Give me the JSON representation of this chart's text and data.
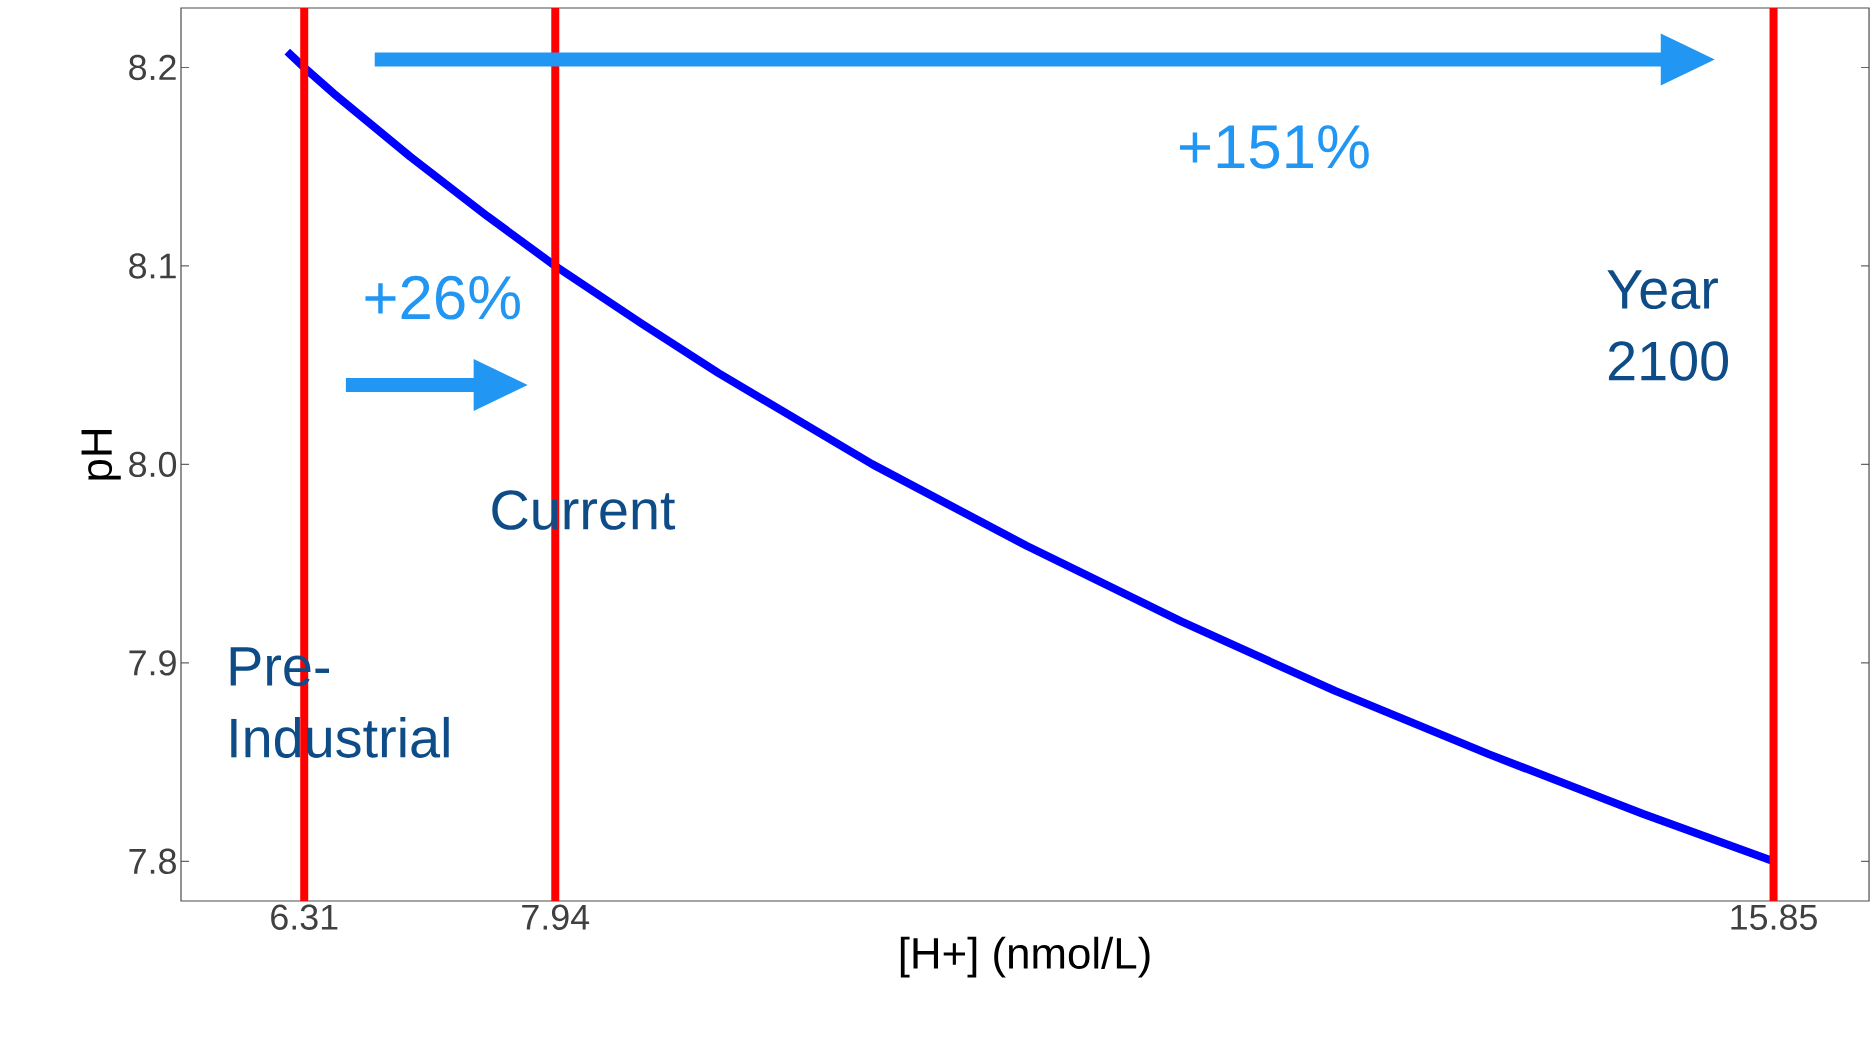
{
  "chart_data": {
    "type": "line",
    "xlabel": "[H+] (nmol/L)",
    "ylabel": "pH",
    "x": [
      6.2,
      6.31,
      6.5,
      7,
      7.5,
      7.94,
      8.5,
      9,
      10,
      11,
      12,
      13,
      14,
      15,
      15.85
    ],
    "series": [
      {
        "color": "#0000ff",
        "values": [
          8.208,
          8.2,
          8.187,
          8.155,
          8.125,
          8.1,
          8.071,
          8.046,
          8.0,
          7.959,
          7.921,
          7.886,
          7.854,
          7.824,
          7.8
        ]
      }
    ],
    "xlim": [
      5.51,
      16.47
    ],
    "ylim": [
      7.78,
      8.23
    ],
    "xticks": [
      6.31,
      7.94,
      15.85
    ],
    "yticks": [
      7.8,
      7.9,
      {
        "value": 8.0,
        "label": "8.0"
      },
      8.1,
      8.2
    ],
    "ref_lines": [
      {
        "axis": "x",
        "value": 6.31,
        "label": "Pre-Industrial",
        "color": "#ff0000"
      },
      {
        "axis": "x",
        "value": 7.94,
        "label": "Current",
        "color": "#ff0000"
      },
      {
        "axis": "x",
        "value": 15.85,
        "label": "Year 2100",
        "color": "#ff0000"
      }
    ],
    "annotations": [
      "+26%",
      "+151%"
    ],
    "grid": false,
    "marker": "none",
    "line_style": "solid"
  }
}
